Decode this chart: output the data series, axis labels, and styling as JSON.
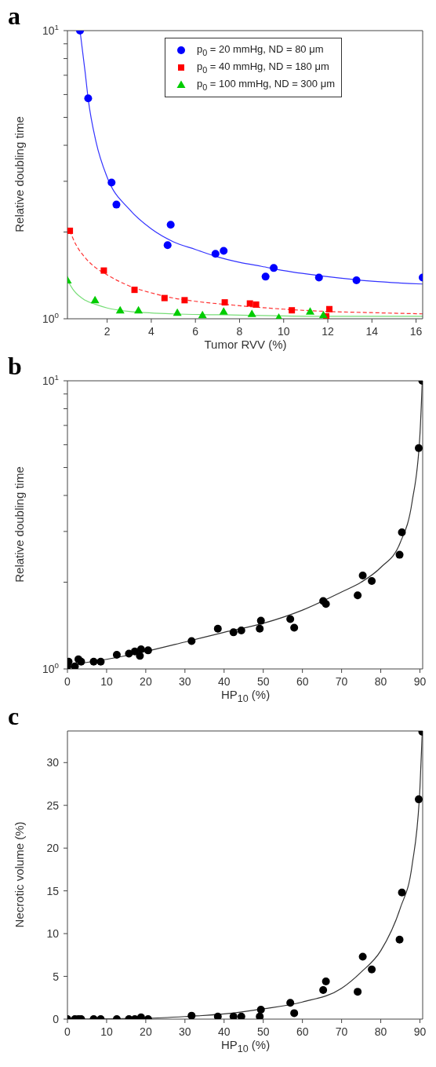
{
  "chart_data": [
    {
      "type": "scatter",
      "title": "a",
      "xlabel": "Tumor RVV (%)",
      "ylabel": "Relative doubling time",
      "xlim": [
        0.2,
        16.3
      ],
      "xticks": [
        2,
        4,
        6,
        8,
        10,
        12,
        14,
        16
      ],
      "ylim": [
        1,
        10
      ],
      "yticks": [
        {
          "value": 1,
          "label": "10$^{0}$"
        },
        {
          "value": 2,
          "label": null
        },
        {
          "value": 3,
          "label": null
        },
        {
          "value": 4,
          "label": null
        },
        {
          "value": 5,
          "label": null
        },
        {
          "value": 6,
          "label": null
        },
        {
          "value": 7,
          "label": null
        },
        {
          "value": 8,
          "label": null
        },
        {
          "value": 9,
          "label": null
        },
        {
          "value": 10,
          "label": "10$^{1}$"
        }
      ],
      "log": "y",
      "legend": "top right",
      "series": [
        {
          "name": "p$_{0}$ = 20 mmHg, ND = 80 μm",
          "marker": "circle",
          "color": "#0000ff",
          "x": [
            0.77,
            1.14,
            2.2,
            2.42,
            4.74,
            4.88,
            6.91,
            7.28,
            9.18,
            9.55,
            11.6,
            13.3,
            16.3
          ],
          "values": [
            10,
            5.82,
            2.97,
            2.49,
            1.8,
            2.12,
            1.68,
            1.72,
            1.4,
            1.5,
            1.39,
            1.36,
            1.39
          ]
        },
        {
          "name": "p$_{0}$ = 40 mmHg, ND = 180 μm",
          "marker": "square",
          "color": "#ff0000",
          "x": [
            0.31,
            1.85,
            3.24,
            4.6,
            5.51,
            7.33,
            8.47,
            8.75,
            10.37,
            12.07,
            11.93
          ],
          "values": [
            2.02,
            1.47,
            1.26,
            1.18,
            1.16,
            1.14,
            1.13,
            1.12,
            1.07,
            1.08,
            1.02
          ]
        },
        {
          "name": "p$_{0}$ = 100 mmHg, ND = 300 μm",
          "marker": "triangle",
          "color": "#00cc00",
          "x": [
            0.2,
            1.45,
            2.59,
            3.42,
            5.18,
            6.32,
            7.28,
            8.56,
            9.78,
            11.2,
            11.8
          ],
          "values": [
            1.36,
            1.16,
            1.07,
            1.07,
            1.05,
            1.03,
            1.06,
            1.04,
            1.01,
            1.06,
            1.03
          ]
        },
        {
          "type": "line",
          "line_style": "solid",
          "marker": "none",
          "color": "#3333ff",
          "x": [
            0.77,
            1,
            1.14,
            1.5,
            2,
            3,
            4,
            5,
            6,
            7,
            8,
            9,
            10,
            12,
            14,
            16.3
          ],
          "values": [
            10,
            7.2,
            5.8,
            4.1,
            3.1,
            2.4,
            2.05,
            1.85,
            1.74,
            1.64,
            1.57,
            1.52,
            1.47,
            1.4,
            1.35,
            1.32
          ]
        },
        {
          "type": "line",
          "line_style": "dashed",
          "marker": "none",
          "color": "#ff3333",
          "x": [
            0.3,
            0.6,
            1,
            1.5,
            2,
            3,
            4,
            5,
            6,
            8,
            10,
            12,
            14,
            16.3
          ],
          "values": [
            2.02,
            1.8,
            1.63,
            1.5,
            1.42,
            1.3,
            1.23,
            1.18,
            1.15,
            1.11,
            1.08,
            1.06,
            1.05,
            1.04
          ]
        },
        {
          "type": "line",
          "line_style": "solid",
          "marker": "none",
          "color": "#77dd77",
          "x": [
            0.2,
            0.5,
            1,
            1.5,
            2,
            3,
            5,
            8,
            12,
            16.3
          ],
          "values": [
            1.36,
            1.25,
            1.16,
            1.12,
            1.09,
            1.06,
            1.04,
            1.03,
            1.02,
            1.02
          ]
        }
      ]
    },
    {
      "type": "scatter",
      "title": "b",
      "xlabel": "HP$_{10}$ (%)",
      "ylabel": "Relative doubling time",
      "xlim": [
        0,
        90.7
      ],
      "xticks": [
        0,
        10,
        20,
        30,
        40,
        50,
        60,
        70,
        80,
        90
      ],
      "ylim": [
        1,
        10
      ],
      "yticks": [
        {
          "value": 1,
          "label": "10$^{0}$"
        },
        {
          "value": 2,
          "label": null
        },
        {
          "value": 3,
          "label": null
        },
        {
          "value": 4,
          "label": null
        },
        {
          "value": 5,
          "label": null
        },
        {
          "value": 6,
          "label": null
        },
        {
          "value": 7,
          "label": null
        },
        {
          "value": 8,
          "label": null
        },
        {
          "value": 9,
          "label": null
        },
        {
          "value": 10,
          "label": "10$^{1}$"
        }
      ],
      "log": "y",
      "series": [
        {
          "marker": "circle",
          "color": "#000000",
          "x": [
            0,
            0.3,
            1.9,
            2.8,
            3.5,
            6.7,
            8.5,
            12.6,
            15.7,
            17.2,
            18.5,
            18.8,
            20.6,
            31.7,
            38.4,
            42.4,
            44.4,
            49.1,
            49.4,
            56.9,
            57.9,
            65.3,
            66.0,
            74.1,
            75.4,
            77.7,
            84.8,
            85.4,
            89.7,
            90.6
          ],
          "values": [
            1.02,
            1.06,
            1.02,
            1.08,
            1.06,
            1.06,
            1.06,
            1.12,
            1.13,
            1.15,
            1.11,
            1.17,
            1.16,
            1.25,
            1.38,
            1.34,
            1.36,
            1.38,
            1.47,
            1.49,
            1.39,
            1.72,
            1.68,
            1.8,
            2.11,
            2.02,
            2.49,
            2.98,
            5.84,
            10.0
          ]
        },
        {
          "type": "line",
          "line_style": "solid",
          "marker": "none",
          "color": "#333333",
          "x": [
            0,
            10,
            20,
            30,
            40,
            50,
            60,
            70,
            75,
            80,
            85,
            88,
            90,
            90.6
          ],
          "values": [
            1.03,
            1.08,
            1.15,
            1.24,
            1.34,
            1.44,
            1.6,
            1.85,
            2.0,
            2.25,
            2.75,
            3.8,
            6.5,
            10
          ]
        }
      ]
    },
    {
      "type": "scatter",
      "title": "c",
      "xlabel": "HP$_{10}$ (%)",
      "ylabel": "Necrotic volume (%)",
      "xlim": [
        0,
        90.7
      ],
      "xticks": [
        0,
        10,
        20,
        30,
        40,
        50,
        60,
        70,
        80,
        90
      ],
      "ylim": [
        0,
        33.7
      ],
      "yticks": [
        0,
        5,
        10,
        15,
        20,
        25,
        30
      ],
      "series": [
        {
          "marker": "circle",
          "color": "#000000",
          "x": [
            0,
            1.9,
            2.8,
            3.5,
            6.7,
            8.5,
            12.6,
            15.7,
            17.2,
            18.8,
            20.6,
            31.7,
            38.4,
            42.4,
            44.4,
            49.1,
            49.4,
            56.9,
            57.9,
            65.3,
            66.0,
            74.1,
            75.4,
            77.7,
            84.8,
            85.4,
            89.7,
            90.6
          ],
          "values": [
            0,
            0,
            0,
            0,
            0,
            0,
            0,
            0,
            0,
            0.2,
            0,
            0.4,
            0.3,
            0.3,
            0.3,
            0.3,
            1.1,
            1.9,
            0.7,
            3.4,
            4.4,
            3.2,
            7.3,
            5.8,
            9.3,
            14.8,
            25.7,
            33.6
          ]
        },
        {
          "type": "line",
          "line_style": "solid",
          "marker": "none",
          "color": "#333333",
          "x": [
            0,
            20,
            30,
            40,
            50,
            60,
            70,
            75,
            80,
            85,
            88,
            90,
            90.6
          ],
          "values": [
            0,
            0.1,
            0.3,
            0.6,
            1.2,
            2.0,
            3.6,
            5.5,
            8.0,
            13,
            18,
            27,
            33.6
          ]
        }
      ]
    }
  ]
}
